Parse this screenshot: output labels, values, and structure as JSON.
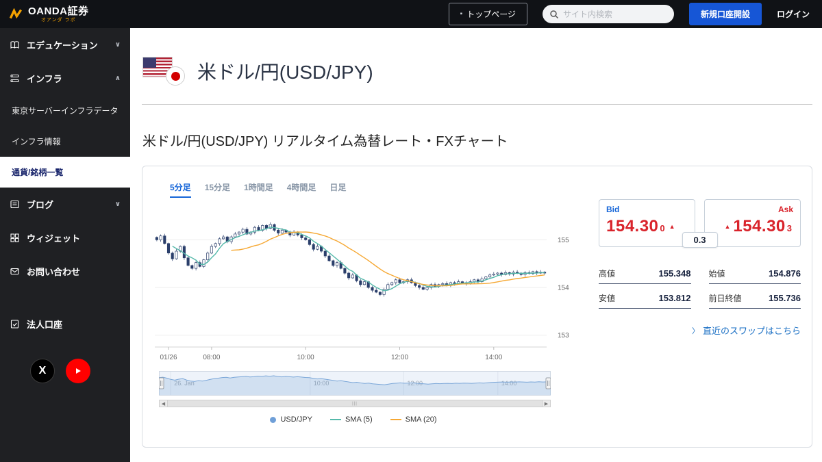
{
  "topbar": {
    "logo_text": "OANDA証券",
    "logo_sub": "オアンダ ラボ",
    "top_page_label": "トップページ",
    "search_placeholder": "サイト内検索",
    "open_account_label": "新規口座開設",
    "login_label": "ログイン"
  },
  "sidebar": {
    "education": "エデュケーション",
    "infra": "インフラ",
    "infra_sub_1": "東京サーバーインフラデータ",
    "infra_sub_2": "インフラ情報",
    "infra_sub_3": "通貨/銘柄一覧",
    "blog": "ブログ",
    "widget": "ウィジェット",
    "contact": "お問い合わせ",
    "corporate": "法人口座"
  },
  "main": {
    "page_title": "米ドル/円(USD/JPY)",
    "subtitle": "米ドル/円(USD/JPY) リアルタイム為替レート・FXチャート"
  },
  "card": {
    "tabs": [
      "5分足",
      "15分足",
      "1時間足",
      "4時間足",
      "日足"
    ],
    "quote": {
      "bid_label": "Bid",
      "ask_label": "Ask",
      "bid_price": "154.30",
      "bid_fraction": "0",
      "ask_price": "154.30",
      "ask_fraction": "3",
      "spread": "0.3",
      "stats": [
        {
          "label": "高値",
          "value": "155.348"
        },
        {
          "label": "始値",
          "value": "154.876"
        },
        {
          "label": "安値",
          "value": "153.812"
        },
        {
          "label": "前日終値",
          "value": "155.736"
        }
      ],
      "swap_link": "直近のスワップはこちら"
    }
  },
  "chart_data": {
    "type": "candlestick",
    "title": "USD/JPY 5分足",
    "y_ticks": [
      153,
      154,
      155
    ],
    "y_range": [
      152.75,
      155.65
    ],
    "x_ticks": [
      {
        "index": 3,
        "label": "01/26"
      },
      {
        "index": 14,
        "label": "08:00"
      },
      {
        "index": 38,
        "label": "10:00"
      },
      {
        "index": 62,
        "label": "12:00"
      },
      {
        "index": 86,
        "label": "14:00"
      }
    ],
    "navigator_ticks": [
      {
        "pos": 0.03,
        "label": "26. Jan"
      },
      {
        "pos": 0.386,
        "label": "10:00"
      },
      {
        "pos": 0.625,
        "label": "12:00"
      },
      {
        "pos": 0.865,
        "label": "14:00"
      }
    ],
    "high": 155.348,
    "low": 153.812,
    "open": 154.876,
    "prev_close": 155.736,
    "closes": [
      155.0,
      155.08,
      154.92,
      154.72,
      154.6,
      154.76,
      154.86,
      154.62,
      154.46,
      154.4,
      154.52,
      154.44,
      154.58,
      154.72,
      154.86,
      154.92,
      155.02,
      155.06,
      154.96,
      155.06,
      155.12,
      155.16,
      155.22,
      155.12,
      155.16,
      155.26,
      155.2,
      155.3,
      155.24,
      155.32,
      155.2,
      155.14,
      155.2,
      155.16,
      155.1,
      155.16,
      155.1,
      155.04,
      155.0,
      154.9,
      154.8,
      154.86,
      154.76,
      154.66,
      154.56,
      154.46,
      154.52,
      154.4,
      154.3,
      154.2,
      154.26,
      154.14,
      154.06,
      154.12,
      154.0,
      153.94,
      153.9,
      153.85,
      153.96,
      154.06,
      154.1,
      154.16,
      154.1,
      154.12,
      154.16,
      154.1,
      154.04,
      154.0,
      153.96,
      154.0,
      154.06,
      154.02,
      154.06,
      154.08,
      154.04,
      154.1,
      154.08,
      154.12,
      154.1,
      154.08,
      154.12,
      154.16,
      154.12,
      154.18,
      154.22,
      154.26,
      154.28,
      154.3,
      154.27,
      154.31,
      154.28,
      154.32,
      154.3,
      154.27,
      154.31,
      154.29,
      154.33,
      154.3,
      154.32,
      154.3
    ],
    "legend": [
      {
        "label": "USD/JPY",
        "marker": "circle",
        "color": "#6f9fd8"
      },
      {
        "label": "SMA (5)",
        "marker": "line",
        "color": "#55b9aa"
      },
      {
        "label": "SMA (20)",
        "marker": "line",
        "color": "#f6a833"
      }
    ],
    "colors": {
      "candle": "#2b3f6b",
      "sma5": "#55b9aa",
      "sma20": "#f6a833",
      "navigator_line": "#7aa6d8",
      "navigator_fill": "rgba(122,166,216,0.25)"
    }
  }
}
